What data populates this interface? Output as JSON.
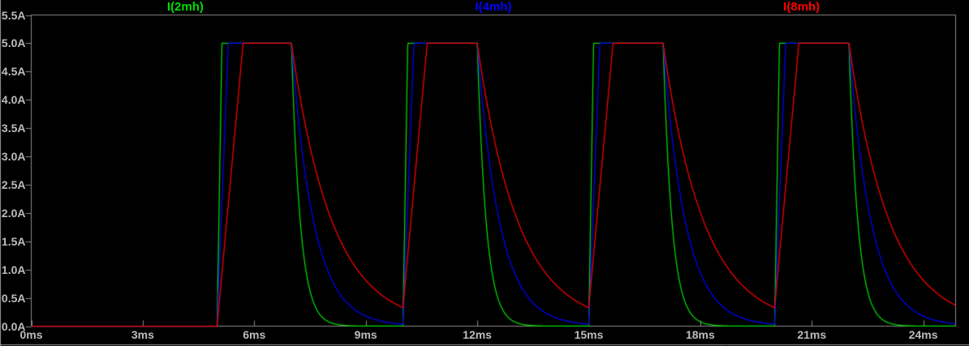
{
  "app": {
    "name": "waveform-viewer"
  },
  "colors": {
    "background": "#000000",
    "frame": "#8a8a8a",
    "tick_label": "#bcbcbc",
    "window_edge": "#9a9a9a",
    "trace_green": "#00dc00",
    "trace_blue": "#0202ff",
    "trace_red": "#ff0000"
  },
  "chart_data": {
    "type": "line",
    "title": "",
    "x_unit": "ms",
    "y_unit": "A",
    "xlim": [
      0,
      24.87
    ],
    "ylim": [
      0,
      5.5
    ],
    "grid": false,
    "legend_position": "top",
    "x_ticks": {
      "values": [
        0,
        3,
        6,
        9,
        12,
        15,
        18,
        21,
        24
      ],
      "labels": [
        "0ms",
        "3ms",
        "6ms",
        "9ms",
        "12ms",
        "15ms",
        "18ms",
        "21ms",
        "24ms"
      ]
    },
    "y_ticks": {
      "values": [
        0,
        0.5,
        1,
        1.5,
        2,
        2.5,
        3,
        3.5,
        4,
        4.5,
        5,
        5.5
      ],
      "labels": [
        "0.0A",
        "0.5A",
        "1.0A",
        "1.5A",
        "2.0A",
        "2.5A",
        "3.0A",
        "3.5A",
        "4.0A",
        "4.5A",
        "5.0A",
        "5.5A"
      ]
    },
    "pulse_model": {
      "comment": "current pulses: zero until first_on, then periodic: linear ramp to peak clamped, flat until on_ms, exponential decay with tau",
      "first_on_ms": 5,
      "period_ms": 5,
      "on_ms": 2,
      "peak_a": 5,
      "initial_a": 0
    },
    "series": [
      {
        "name": "I(2mh)",
        "color": "#00dc00",
        "rise_ms": 0.13,
        "decay_tau_ms": 0.24,
        "legend_x_frac": 0.1667
      },
      {
        "name": "I(4mh)",
        "color": "#0202ff",
        "rise_ms": 0.3,
        "decay_tau_ms": 0.6,
        "legend_x_frac": 0.5
      },
      {
        "name": "I(8mh)",
        "color": "#ff0000",
        "rise_ms": 0.7,
        "decay_tau_ms": 1.1,
        "legend_x_frac": 0.8333
      }
    ],
    "key_values": {
      "flat_top_level_a": 5.0,
      "value_at_next_pulse_a": {
        "I(2mh)": 0.0,
        "I(4mh)": 0.03,
        "I(8mh)": 0.33
      },
      "pulse_on_windows_ms": [
        [
          5,
          7
        ],
        [
          10,
          12
        ],
        [
          15,
          17
        ],
        [
          20,
          22
        ]
      ]
    }
  }
}
